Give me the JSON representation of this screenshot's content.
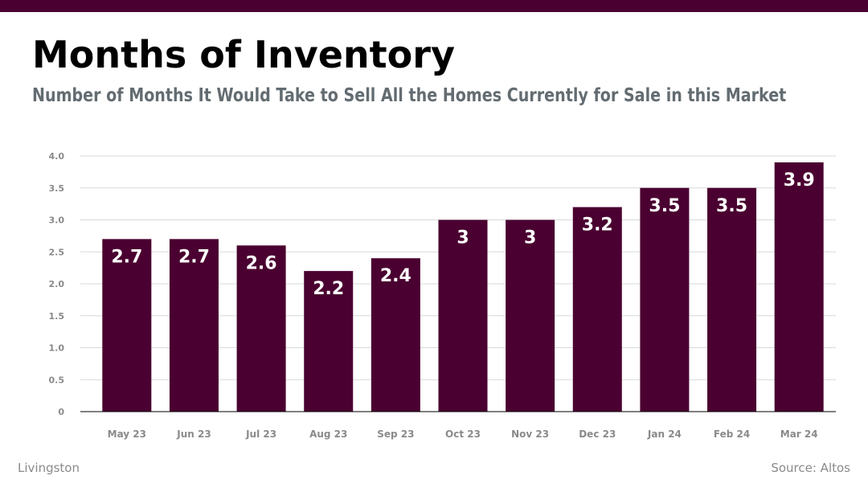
{
  "colors": {
    "accent": "#4a0030",
    "subtitle": "#636c71",
    "footer": "#8a8a8a",
    "grid": "#d9d9d9",
    "bar_label": "#ffffff"
  },
  "header": {
    "title": "Months of Inventory",
    "subtitle": "Number of Months It Would Take to Sell All the Homes Currently for Sale in this Market"
  },
  "footer": {
    "location": "Livingston",
    "source": "Source: Altos"
  },
  "chart_data": {
    "type": "bar",
    "title": "Months of Inventory",
    "xlabel": "",
    "ylabel": "",
    "ylim": [
      0,
      4
    ],
    "yticks": [
      0,
      0.5,
      1.0,
      1.5,
      2.0,
      2.5,
      3.0,
      3.5,
      4.0
    ],
    "ytick_labels": [
      "0",
      "0.5",
      "1.0",
      "1.5",
      "2.0",
      "2.5",
      "3.0",
      "3.5",
      "4.0"
    ],
    "grid": true,
    "categories": [
      "May 23",
      "Jun 23",
      "Jul 23",
      "Aug 23",
      "Sep 23",
      "Oct 23",
      "Nov 23",
      "Dec 23",
      "Jan 24",
      "Feb 24",
      "Mar 24"
    ],
    "values": [
      2.7,
      2.7,
      2.6,
      2.2,
      2.4,
      3,
      3,
      3.2,
      3.5,
      3.5,
      3.9
    ],
    "data_labels": [
      "2.7",
      "2.7",
      "2.6",
      "2.2",
      "2.4",
      "3",
      "3",
      "3.2",
      "3.5",
      "3.5",
      "3.9"
    ]
  }
}
